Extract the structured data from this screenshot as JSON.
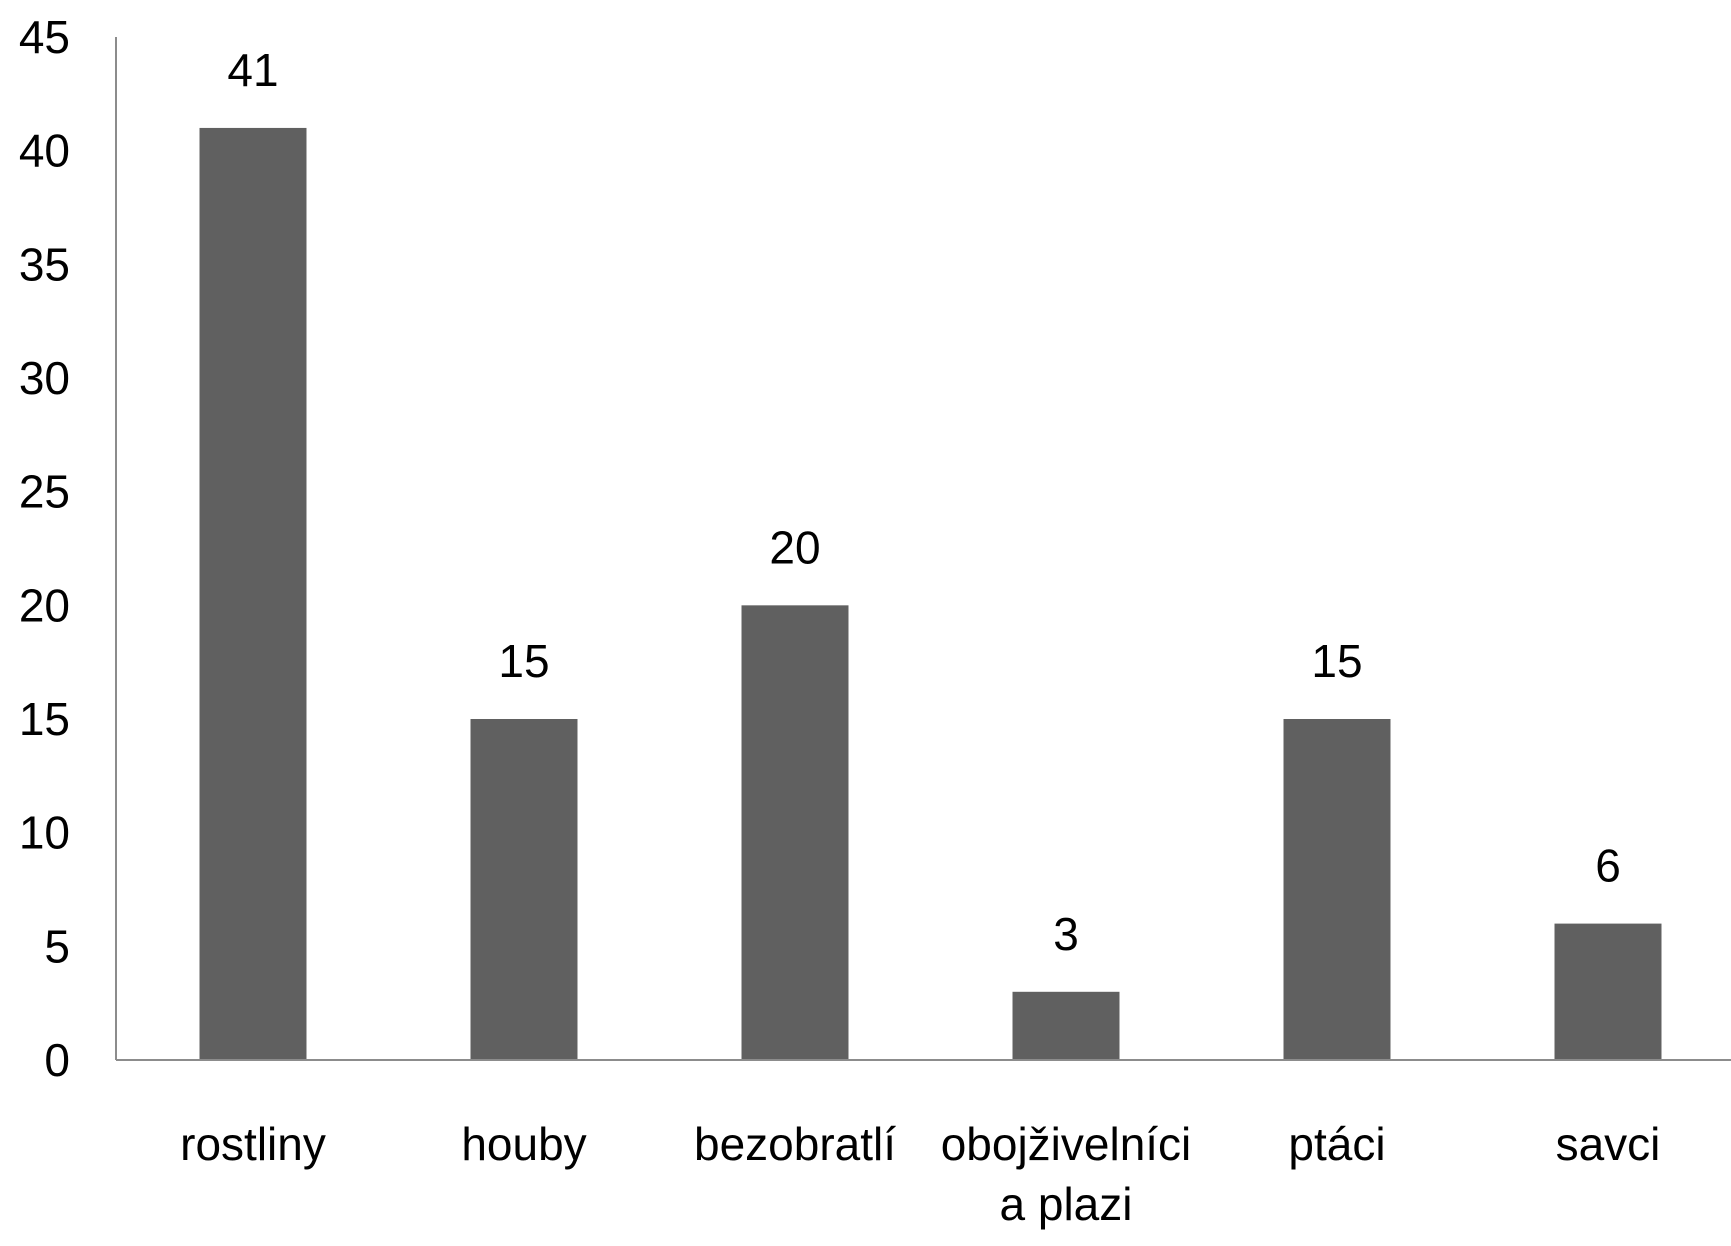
{
  "chart_data": {
    "type": "bar",
    "title": "",
    "xlabel": "",
    "ylabel": "",
    "categories": [
      [
        "rostliny"
      ],
      [
        "houby"
      ],
      [
        "bezobratlí"
      ],
      [
        "obojživelníci",
        "a plazi"
      ],
      [
        "ptáci"
      ],
      [
        "savci"
      ]
    ],
    "values": [
      41,
      15,
      20,
      3,
      15,
      6
    ],
    "data_labels": [
      "41",
      "15",
      "20",
      "3",
      "15",
      "6"
    ],
    "ylim": [
      0,
      45
    ],
    "yticks": [
      0,
      5,
      10,
      15,
      20,
      25,
      30,
      35,
      40,
      45
    ],
    "grid": false,
    "legend": "none",
    "bar_color": "#606060"
  }
}
